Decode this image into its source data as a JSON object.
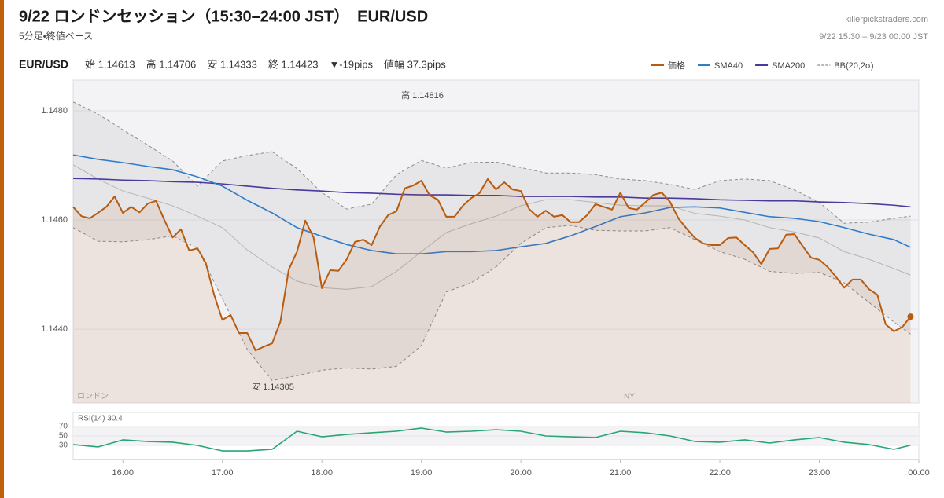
{
  "header": {
    "title": "9/22 ロンドンセッション（15:30–24:00 JST）　EUR/USD",
    "subtitle": "5分足・終値ベース",
    "site": "killerpickstraders.com",
    "range": "9/22 15:30 – 9/23 00:00 JST"
  },
  "stats": {
    "symbol": "EUR/USD",
    "items": [
      "始 1.14613",
      "高 1.14706",
      "安 1.14333",
      "終 1.14423",
      "▼-19pips",
      "値幅 37.3pips"
    ]
  },
  "chart_data": [
    {
      "type": "line",
      "xlim": [
        930,
        1440
      ],
      "ylim": [
        1.14265,
        1.14856
      ],
      "yticks": [
        {
          "value": 1.144,
          "label": "1.1440"
        },
        {
          "value": 1.146,
          "label": "1.1460"
        },
        {
          "value": 1.148,
          "label": "1.1480"
        }
      ],
      "grid": true,
      "annotations": [
        "高 1.14816",
        "安 1.14305"
      ],
      "sessions": [
        "ロンドン",
        "NY"
      ],
      "series": [
        {
          "name": "価格",
          "color": "#b85c0f",
          "area": true,
          "x": [
            930,
            935,
            940,
            945,
            950,
            955,
            960,
            965,
            970,
            975,
            980,
            985,
            990,
            995,
            1000,
            1005,
            1010,
            1015,
            1020,
            1025,
            1030,
            1035,
            1040,
            1045,
            1050,
            1055,
            1060,
            1065,
            1070,
            1075,
            1080,
            1085,
            1090,
            1095,
            1100,
            1105,
            1110,
            1115,
            1120,
            1125,
            1130,
            1135,
            1140,
            1145,
            1150,
            1155,
            1160,
            1165,
            1170,
            1175,
            1180,
            1185,
            1190,
            1195,
            1200,
            1205,
            1210,
            1215,
            1220,
            1225,
            1230,
            1235,
            1240,
            1245,
            1250,
            1255,
            1260,
            1265,
            1270,
            1275,
            1280,
            1285,
            1290,
            1295,
            1300,
            1305,
            1310,
            1315,
            1320,
            1325,
            1330,
            1335,
            1340,
            1345,
            1350,
            1355,
            1360,
            1365,
            1370,
            1375,
            1380,
            1385,
            1390,
            1395,
            1400,
            1405,
            1410,
            1415,
            1420,
            1425,
            1430,
            1435
          ],
          "values": [
            1.14624,
            1.14607,
            1.14603,
            1.14613,
            1.14624,
            1.14643,
            1.14613,
            1.14624,
            1.14614,
            1.1463,
            1.14635,
            1.146,
            1.14568,
            1.14583,
            1.14544,
            1.14548,
            1.14521,
            1.14463,
            1.14417,
            1.14426,
            1.14393,
            1.14393,
            1.14361,
            1.14368,
            1.14374,
            1.14414,
            1.14509,
            1.14542,
            1.14599,
            1.14568,
            1.14475,
            1.14508,
            1.14507,
            1.14528,
            1.1456,
            1.14564,
            1.14554,
            1.14588,
            1.14609,
            1.14616,
            1.14658,
            1.14663,
            1.14672,
            1.14645,
            1.14637,
            1.14606,
            1.14606,
            1.14626,
            1.1464,
            1.14649,
            1.14675,
            1.14656,
            1.14669,
            1.14656,
            1.14653,
            1.1462,
            1.14606,
            1.14617,
            1.14606,
            1.14609,
            1.14596,
            1.14596,
            1.14609,
            1.14629,
            1.14624,
            1.14619,
            1.1465,
            1.14622,
            1.14619,
            1.14632,
            1.14646,
            1.1465,
            1.14633,
            1.14603,
            1.14584,
            1.14567,
            1.14557,
            1.14554,
            1.14554,
            1.14567,
            1.14568,
            1.14554,
            1.14541,
            1.14519,
            1.14547,
            1.14548,
            1.14573,
            1.14574,
            1.14552,
            1.14531,
            1.14527,
            1.14514,
            1.14496,
            1.14476,
            1.14491,
            1.14491,
            1.14473,
            1.14463,
            1.14409,
            1.14396,
            1.14404,
            1.14423
          ]
        },
        {
          "name": "SMA40",
          "color": "#2f7bcc",
          "x": [
            930,
            945,
            960,
            975,
            990,
            1005,
            1020,
            1035,
            1050,
            1065,
            1080,
            1095,
            1110,
            1125,
            1140,
            1155,
            1170,
            1185,
            1200,
            1215,
            1230,
            1245,
            1260,
            1275,
            1290,
            1305,
            1320,
            1335,
            1350,
            1365,
            1380,
            1395,
            1410,
            1425,
            1435
          ],
          "values": [
            1.14719,
            1.14711,
            1.14705,
            1.14698,
            1.14692,
            1.14679,
            1.14662,
            1.14636,
            1.14613,
            1.14586,
            1.1457,
            1.14555,
            1.14544,
            1.14538,
            1.14538,
            1.14542,
            1.14542,
            1.14544,
            1.14551,
            1.14557,
            1.14571,
            1.14588,
            1.14606,
            1.14613,
            1.14623,
            1.14624,
            1.14622,
            1.14614,
            1.14606,
            1.14603,
            1.14597,
            1.14586,
            1.14574,
            1.14564,
            1.1455
          ]
        },
        {
          "name": "SMA200",
          "color": "#4a3a9c",
          "x": [
            930,
            945,
            960,
            975,
            990,
            1005,
            1020,
            1035,
            1050,
            1065,
            1080,
            1095,
            1110,
            1125,
            1140,
            1155,
            1170,
            1185,
            1200,
            1215,
            1230,
            1245,
            1260,
            1275,
            1290,
            1305,
            1320,
            1335,
            1350,
            1365,
            1380,
            1395,
            1410,
            1425,
            1435
          ],
          "values": [
            1.14676,
            1.14675,
            1.14673,
            1.14672,
            1.1467,
            1.14669,
            1.14666,
            1.14662,
            1.14658,
            1.14655,
            1.14653,
            1.1465,
            1.14649,
            1.14647,
            1.14646,
            1.14646,
            1.14645,
            1.14645,
            1.14643,
            1.14643,
            1.14643,
            1.14642,
            1.14642,
            1.1464,
            1.1464,
            1.14639,
            1.14637,
            1.14636,
            1.14635,
            1.14635,
            1.14633,
            1.14632,
            1.1463,
            1.14627,
            1.14624
          ]
        }
      ],
      "bands": {
        "name": "BB(20,2σ)",
        "color": "#8c8c8c",
        "middle_color": "#b5b5b5",
        "fill": "#9a9aa6",
        "x": [
          930,
          945,
          960,
          975,
          990,
          1005,
          1020,
          1035,
          1050,
          1065,
          1080,
          1095,
          1110,
          1125,
          1140,
          1155,
          1170,
          1185,
          1200,
          1215,
          1230,
          1245,
          1260,
          1275,
          1290,
          1305,
          1320,
          1335,
          1350,
          1365,
          1380,
          1395,
          1410,
          1425,
          1435
        ],
        "upper": [
          1.14816,
          1.14794,
          1.14765,
          1.14737,
          1.14708,
          1.14662,
          1.14708,
          1.14718,
          1.14725,
          1.14694,
          1.1465,
          1.1462,
          1.14629,
          1.14683,
          1.14709,
          1.14695,
          1.14705,
          1.14706,
          1.14696,
          1.14686,
          1.14686,
          1.14683,
          1.14675,
          1.14672,
          1.14665,
          1.14656,
          1.14672,
          1.14675,
          1.14672,
          1.14655,
          1.14632,
          1.14594,
          1.14596,
          1.14603,
          1.14607
        ],
        "middle": [
          1.14701,
          1.14675,
          1.14653,
          1.1464,
          1.14626,
          1.14607,
          1.14586,
          1.14545,
          1.14514,
          1.14488,
          1.14476,
          1.14473,
          1.14478,
          1.14506,
          1.14542,
          1.14577,
          1.14593,
          1.14607,
          1.14626,
          1.14637,
          1.14637,
          1.14632,
          1.14627,
          1.14626,
          1.14626,
          1.14612,
          1.14607,
          1.146,
          1.14586,
          1.14578,
          1.14567,
          1.14542,
          1.14528,
          1.14511,
          1.14499
        ],
        "lower": [
          1.14586,
          1.14561,
          1.1456,
          1.14564,
          1.14571,
          1.14548,
          1.14456,
          1.14363,
          1.14306,
          1.14315,
          1.14325,
          1.14329,
          1.14327,
          1.14332,
          1.1437,
          1.14468,
          1.14485,
          1.14514,
          1.14557,
          1.14586,
          1.1459,
          1.14581,
          1.1458,
          1.1458,
          1.14586,
          1.14564,
          1.14542,
          1.14528,
          1.14506,
          1.14502,
          1.14504,
          1.14485,
          1.14449,
          1.14413,
          1.14391
        ]
      }
    },
    {
      "type": "line",
      "title": "RSI(14) 30.4",
      "xlim": [
        930,
        1440
      ],
      "ylim": [
        0,
        100
      ],
      "yticks": [
        30,
        50,
        70
      ],
      "grid": true,
      "xticks": [
        {
          "value": 960,
          "label": "16:00"
        },
        {
          "value": 1020,
          "label": "17:00"
        },
        {
          "value": 1080,
          "label": "18:00"
        },
        {
          "value": 1140,
          "label": "19:00"
        },
        {
          "value": 1200,
          "label": "20:00"
        },
        {
          "value": 1260,
          "label": "21:00"
        },
        {
          "value": 1320,
          "label": "22:00"
        },
        {
          "value": 1380,
          "label": "23:00"
        },
        {
          "value": 1440,
          "label": "00:00"
        }
      ],
      "series": [
        {
          "color": "#27a673",
          "x": [
            930,
            945,
            960,
            975,
            990,
            1005,
            1020,
            1035,
            1050,
            1065,
            1080,
            1095,
            1110,
            1125,
            1140,
            1155,
            1170,
            1185,
            1200,
            1215,
            1230,
            1245,
            1260,
            1275,
            1290,
            1305,
            1320,
            1335,
            1350,
            1365,
            1380,
            1395,
            1410,
            1425,
            1435
          ],
          "values": [
            31.7,
            26.7,
            41.7,
            38.3,
            36.7,
            30,
            18.3,
            18.3,
            21.7,
            60,
            48.3,
            53.3,
            56.7,
            60,
            66.7,
            58.3,
            60,
            63.3,
            60,
            50,
            48.3,
            46.7,
            60,
            56.7,
            50,
            38.3,
            36.7,
            41.7,
            35,
            41.7,
            46.7,
            36.7,
            31.7,
            21.7,
            30.4
          ]
        }
      ]
    }
  ]
}
